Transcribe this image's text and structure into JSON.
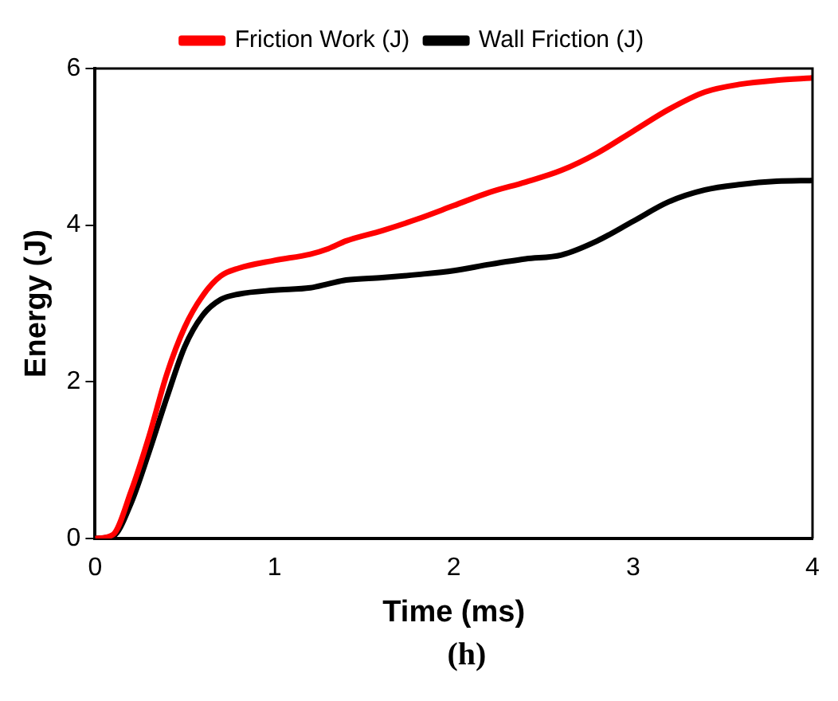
{
  "chart_data": {
    "type": "line",
    "xlabel": "Time (ms)",
    "ylabel": "Energy (J)",
    "annotations": [
      "(h)"
    ],
    "xlim": [
      0,
      4
    ],
    "xticks": [
      0,
      1,
      2,
      3,
      4
    ],
    "ylim": [
      0,
      6
    ],
    "yticks": [
      0,
      2,
      4,
      6
    ],
    "grid": false,
    "legend": "top",
    "marker": "none",
    "line_style": "solid",
    "series": [
      {
        "name": "Friction Work (J)",
        "color": "#ff0000",
        "x": [
          0,
          0.1,
          0.2,
          0.3,
          0.4,
          0.5,
          0.6,
          0.7,
          0.8,
          1.0,
          1.2,
          1.3,
          1.4,
          1.6,
          1.8,
          2.0,
          2.2,
          2.4,
          2.6,
          2.8,
          3.0,
          3.2,
          3.4,
          3.6,
          3.8,
          4.0
        ],
        "values": [
          0,
          0.05,
          0.6,
          1.3,
          2.1,
          2.7,
          3.1,
          3.35,
          3.45,
          3.55,
          3.63,
          3.7,
          3.8,
          3.93,
          4.08,
          4.25,
          4.42,
          4.55,
          4.7,
          4.92,
          5.2,
          5.48,
          5.7,
          5.8,
          5.85,
          5.88
        ]
      },
      {
        "name": "Wall Friction (J)",
        "color": "#000000",
        "x": [
          0,
          0.1,
          0.2,
          0.3,
          0.4,
          0.5,
          0.6,
          0.7,
          0.8,
          1.0,
          1.2,
          1.3,
          1.4,
          1.6,
          1.8,
          2.0,
          2.2,
          2.4,
          2.6,
          2.8,
          3.0,
          3.2,
          3.4,
          3.6,
          3.8,
          4.0
        ],
        "values": [
          0,
          0.03,
          0.45,
          1.1,
          1.8,
          2.45,
          2.85,
          3.05,
          3.12,
          3.17,
          3.2,
          3.25,
          3.3,
          3.33,
          3.37,
          3.42,
          3.5,
          3.57,
          3.62,
          3.8,
          4.05,
          4.3,
          4.45,
          4.52,
          4.56,
          4.57
        ]
      }
    ]
  }
}
